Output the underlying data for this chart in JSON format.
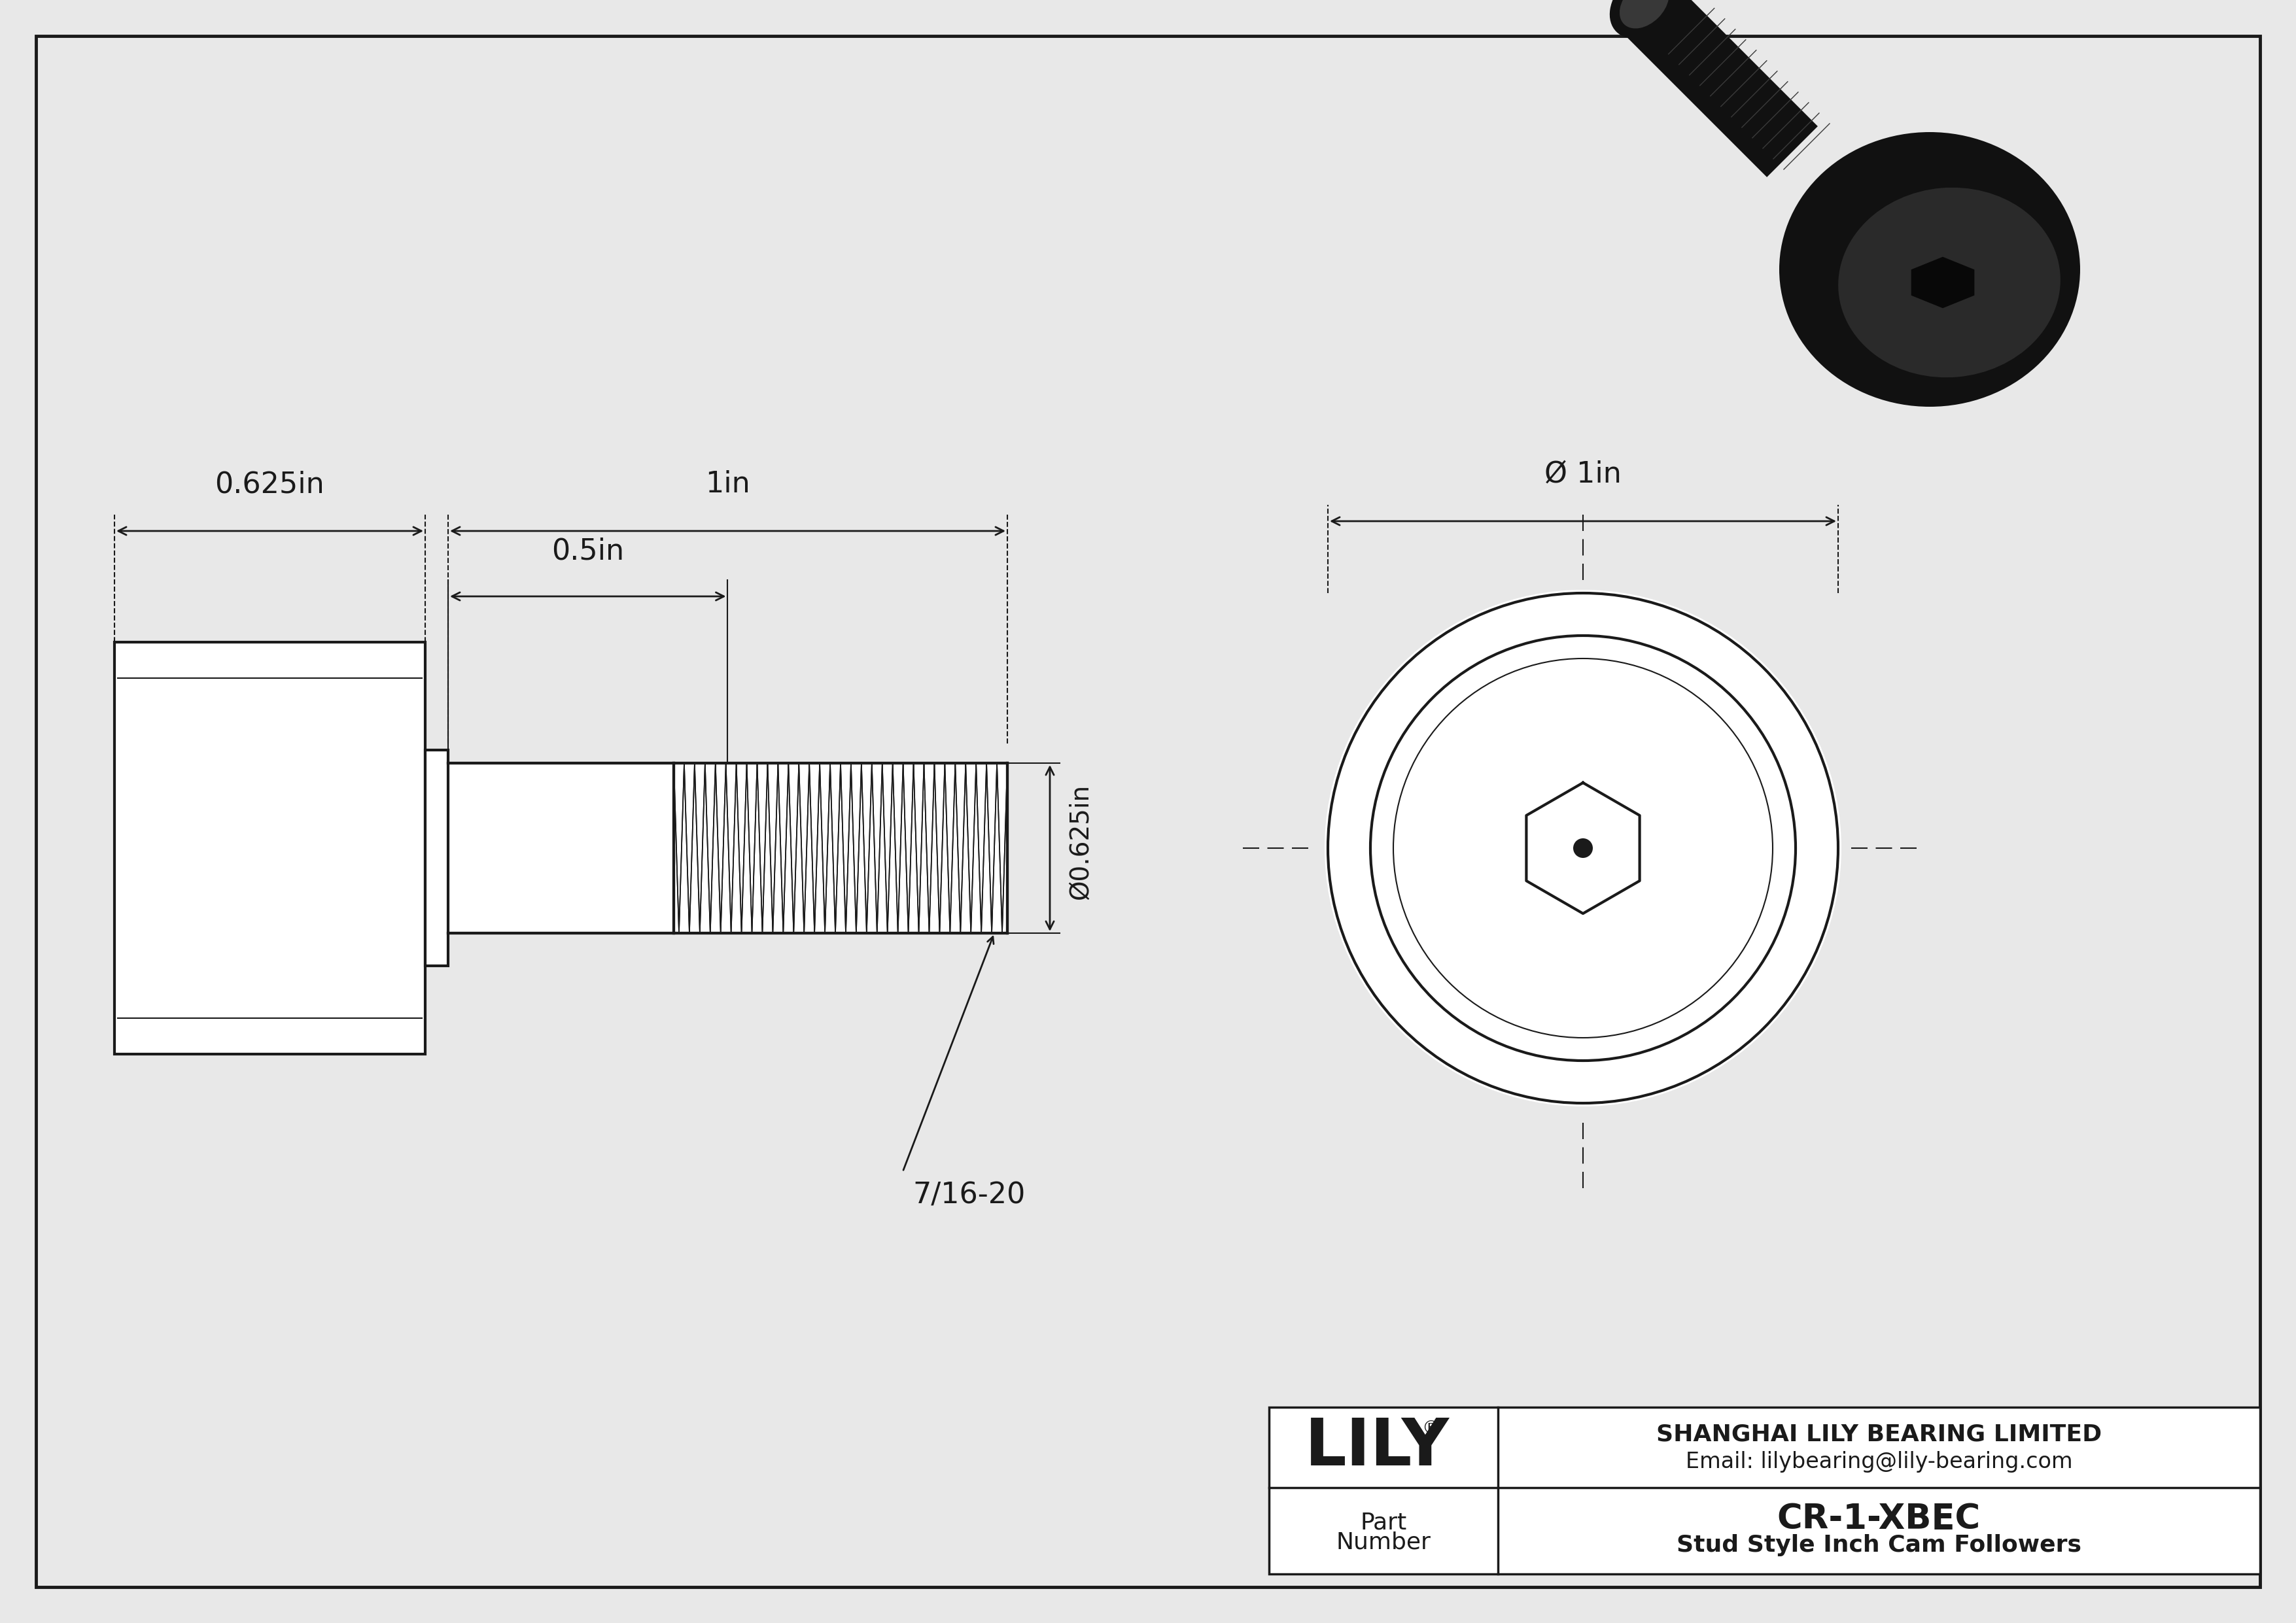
{
  "bg_color": "#e8e8e8",
  "line_color": "#1a1a1a",
  "lw_main": 3.0,
  "lw_dim": 2.0,
  "lw_thin": 1.5,
  "lw_thread": 1.2,
  "title": "CR-1-XBEC",
  "subtitle": "Stud Style Inch Cam Followers",
  "company": "SHANGHAI LILY BEARING LIMITED",
  "email": "Email: lilybearing@lily-bearing.com",
  "dim_0625": "0.625in",
  "dim_1in": "1in",
  "dim_05in": "0.5in",
  "dim_0625_vert": "Ø0.625in",
  "dim_dia_1in": "Ø 1in",
  "dim_thread": "7/16-20",
  "font_dim": 32,
  "font_title": 38,
  "font_sub": 26,
  "font_company": 26,
  "font_lily": 72
}
